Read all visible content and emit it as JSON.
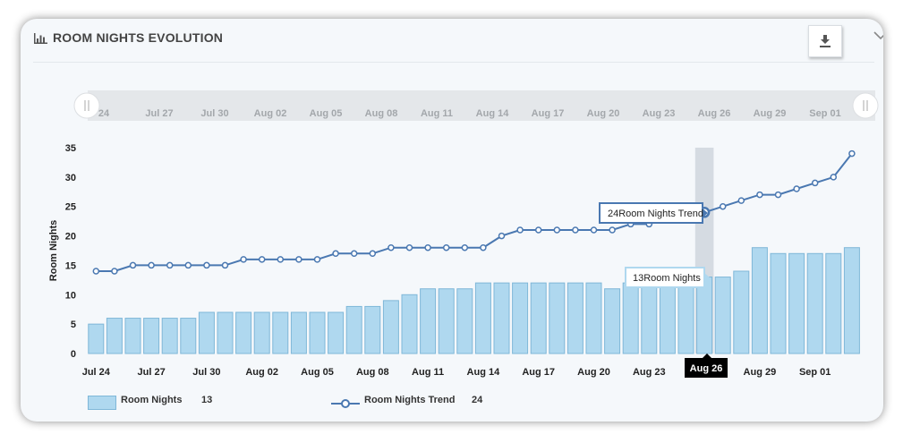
{
  "widget": {
    "title": "ROOM NIGHTS EVOLUTION",
    "title_icon": "bar-chart-icon",
    "download_icon": "download-icon",
    "collapse_icon": "chevron-down-icon"
  },
  "navigator": {
    "labels": [
      "24",
      "Jul 27",
      "Jul 30",
      "Aug 02",
      "Aug 05",
      "Aug 08",
      "Aug 11",
      "Aug 14",
      "Aug 17",
      "Aug 20",
      "Aug 23",
      "Aug 26",
      "Aug 29",
      "Sep 01"
    ]
  },
  "tooltips": {
    "trend": "24Room Nights Trend",
    "bar": "13Room Nights",
    "x_label": "Aug 26"
  },
  "legend": {
    "bar_name": "Room Nights",
    "bar_value": "13",
    "line_name": "Room Nights Trend",
    "line_value": "24"
  },
  "colors": {
    "bar_fill": "#afd8ef",
    "bar_stroke": "#7fb7d8",
    "line": "#4a78b1",
    "highlight": "#cfd6dd"
  },
  "chart_data": {
    "type": "bar",
    "title": "ROOM NIGHTS EVOLUTION",
    "ylabel": "Room Nights",
    "xlabel": "",
    "ylim": [
      0,
      35
    ],
    "yticks": [
      0,
      5,
      10,
      15,
      20,
      25,
      30,
      35
    ],
    "x_tick_labels": [
      "Jul 24",
      "Jul 27",
      "Jul 30",
      "Aug 02",
      "Aug 05",
      "Aug 08",
      "Aug 11",
      "Aug 14",
      "Aug 17",
      "Aug 20",
      "Aug 23",
      "Aug 26",
      "Aug 29",
      "Sep 01"
    ],
    "x_tick_every": 3,
    "dates": [
      "Jul 24",
      "Jul 25",
      "Jul 26",
      "Jul 27",
      "Jul 28",
      "Jul 29",
      "Jul 30",
      "Jul 31",
      "Aug 01",
      "Aug 02",
      "Aug 03",
      "Aug 04",
      "Aug 05",
      "Aug 06",
      "Aug 07",
      "Aug 08",
      "Aug 09",
      "Aug 10",
      "Aug 11",
      "Aug 12",
      "Aug 13",
      "Aug 14",
      "Aug 15",
      "Aug 16",
      "Aug 17",
      "Aug 18",
      "Aug 19",
      "Aug 20",
      "Aug 21",
      "Aug 22",
      "Aug 23",
      "Aug 24",
      "Aug 25",
      "Aug 26",
      "Aug 27",
      "Aug 28",
      "Aug 29",
      "Aug 30",
      "Aug 31",
      "Sep 01",
      "Sep 02",
      "Sep 03"
    ],
    "highlight_date": "Aug 26",
    "grid": false,
    "legend_position": "bottom-left",
    "series": [
      {
        "name": "Room Nights",
        "type": "bar",
        "values": [
          5,
          6,
          6,
          6,
          6,
          6,
          7,
          7,
          7,
          7,
          7,
          7,
          7,
          7,
          8,
          8,
          9,
          10,
          11,
          11,
          11,
          12,
          12,
          12,
          12,
          12,
          12,
          12,
          11,
          12,
          12,
          12,
          12,
          13,
          13,
          14,
          18,
          17,
          17,
          17,
          17,
          18
        ]
      },
      {
        "name": "Room Nights Trend",
        "type": "line",
        "values": [
          14,
          14,
          15,
          15,
          15,
          15,
          15,
          15,
          16,
          16,
          16,
          16,
          16,
          17,
          17,
          17,
          18,
          18,
          18,
          18,
          18,
          18,
          20,
          21,
          21,
          21,
          21,
          21,
          21,
          22,
          22,
          23,
          23,
          24,
          25,
          26,
          27,
          27,
          28,
          29,
          30,
          34
        ]
      }
    ]
  }
}
